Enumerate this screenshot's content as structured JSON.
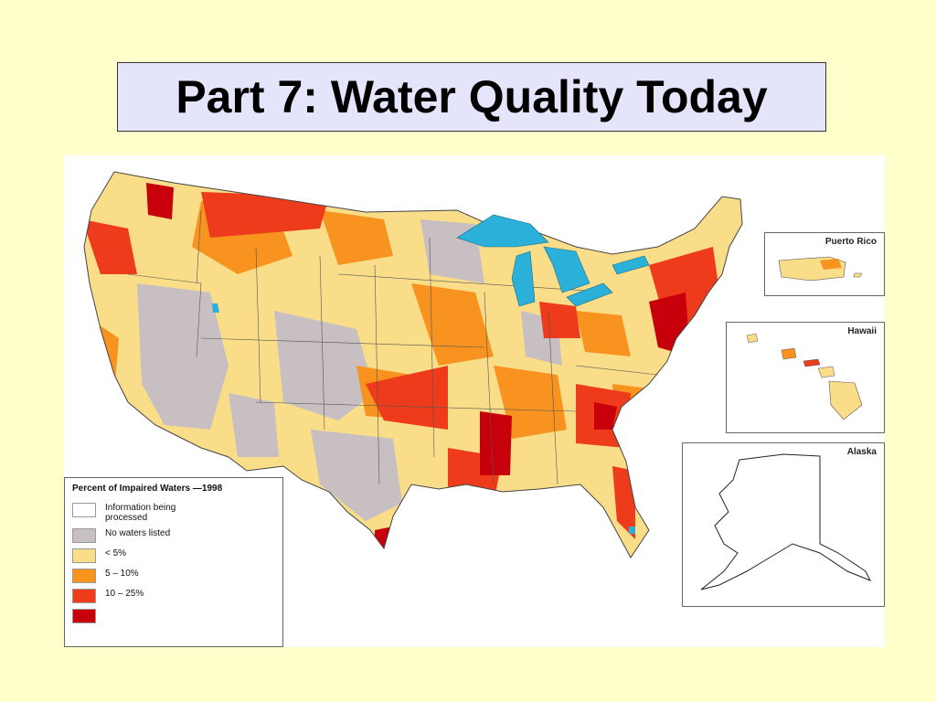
{
  "slide": {
    "title": "Part 7: Water Quality Today"
  },
  "map": {
    "insets": {
      "puerto_rico": "Puerto Rico",
      "hawaii": "Hawaii",
      "alaska": "Alaska"
    },
    "legend": {
      "title": "Percent of Impaired Waters —1998",
      "items": [
        {
          "label": "Information being processed",
          "color": "#ffffff"
        },
        {
          "label": "No waters listed",
          "color": "#c8bfc2"
        },
        {
          "label": "< 5%",
          "color": "#fadd88"
        },
        {
          "label": "5 – 10%",
          "color": "#f7931e"
        },
        {
          "label": "10 – 25%",
          "color": "#ee3b1c"
        },
        {
          "label": "",
          "color": "#c8000b"
        }
      ]
    },
    "colors": {
      "water": "#2ab0d9",
      "gray": "#c8bfc2",
      "yellow": "#fadd88",
      "orange": "#f7931e",
      "red": "#ee3b1c",
      "darkred": "#c8000b"
    }
  }
}
